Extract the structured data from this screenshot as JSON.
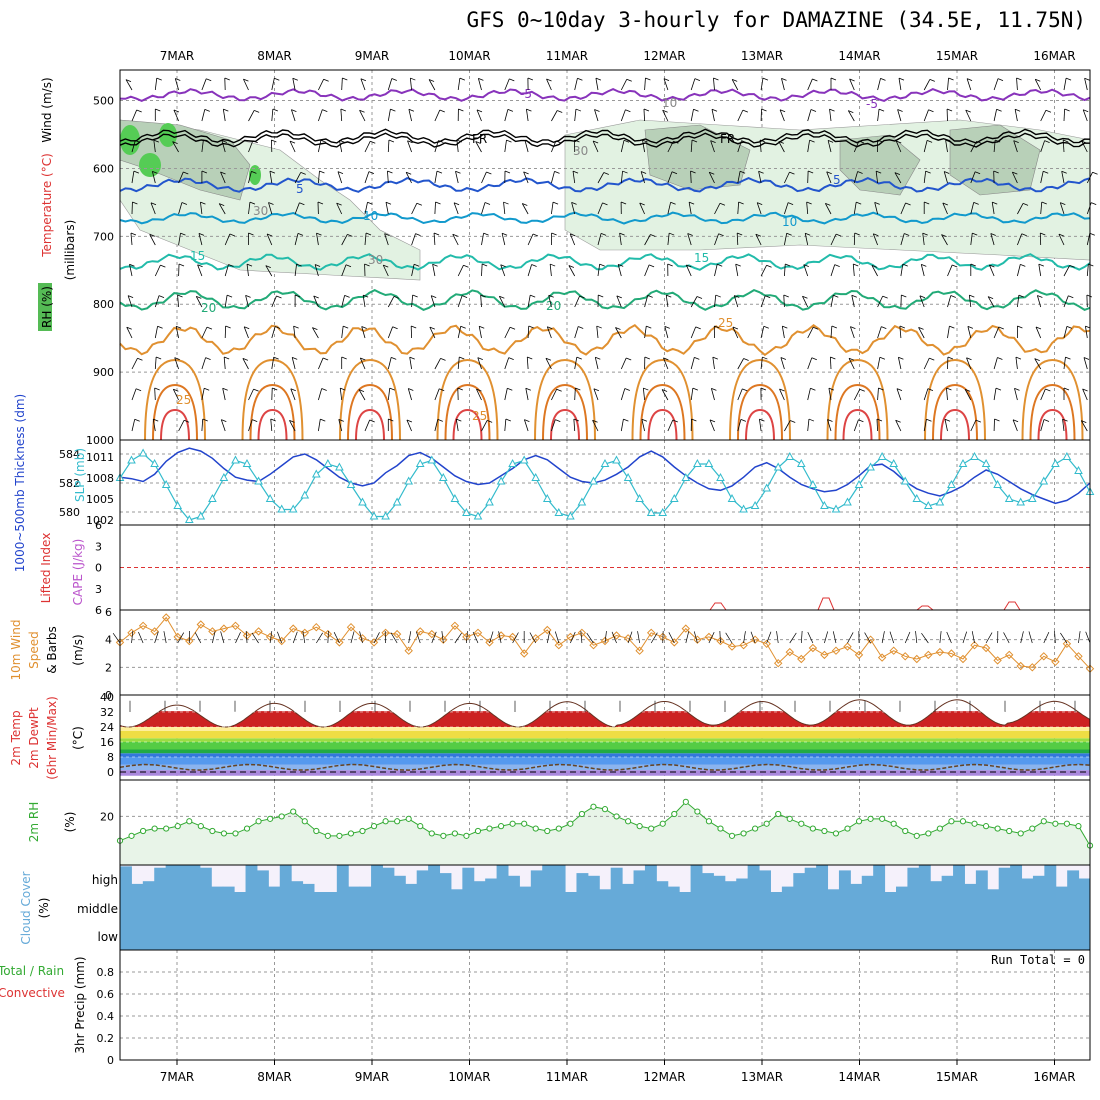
{
  "title": "GFS 0~10day 3-hourly for DAMAZINE (34.5E, 11.75N)",
  "dates": [
    "7MAR",
    "8MAR",
    "9MAR",
    "10MAR",
    "11MAR",
    "12MAR",
    "13MAR",
    "14MAR",
    "15MAR",
    "16MAR"
  ],
  "run_total_label": "Run Total = 0",
  "colors": {
    "rh": "#55cc55",
    "temp_label": "#dd3333",
    "wind_label": "#000000",
    "thick": "#2244cc",
    "slp": "#33bbcc",
    "lifted": "#dd3333",
    "cape": "#bb55cc",
    "wind10": "#e09030",
    "t2m": "#dd3333",
    "rh2": "#33aa33",
    "cloud": "#66aad8",
    "precip_total": "#33aa33",
    "precip_conv": "#dd3333"
  },
  "labels": {
    "upper": {
      "rh": "RH (%)",
      "temp": "Temperature (°C)",
      "wind": "Wind (m/s)",
      "pressure": "(millibars)",
      "fr": "FR",
      "contours": {
        "m5": "-5",
        "p5": "5",
        "p10": "10",
        "p15": "15",
        "p20": "20",
        "p25": "25",
        "rh30": "30",
        "rh10": "10"
      }
    },
    "thick": "1000~500mb Thickness (dm)",
    "slp": "SLP (mb)",
    "lifted": "Lifted Index",
    "cape": "CAPE (J/kg)",
    "wind10a": "10m Wind",
    "wind10b": "Speed",
    "wind10c": "& Barbs",
    "wind10unit": "(m/s)",
    "t2ma": "2m Temp",
    "t2mb": "2m DewPt",
    "t2mc": "(6hr Min/Max)",
    "t2munit": "(°C)",
    "rh2": "2m RH",
    "rh2unit": "(%)",
    "cloud": "Cloud Cover",
    "cloudunit": "(%)",
    "cloud_levels": {
      "high": "high",
      "middle": "middle",
      "low": "low"
    },
    "precipa": "Total / Rain",
    "precipb": "Convective",
    "precipc": "3hr Precip (mm)"
  },
  "chart_data": [
    {
      "type": "contour",
      "name": "upper-air",
      "y_axis": {
        "unit": "millibars",
        "ticks": [
          500,
          600,
          700,
          800,
          900,
          1000
        ],
        "range": [
          455,
          1000
        ],
        "inverted": true
      },
      "temperature_contours_C": [
        -5,
        5,
        10,
        15,
        20,
        25
      ],
      "freezing_level_mb": 560,
      "rh_contours_pct": [
        10,
        30,
        50,
        70,
        90
      ]
    },
    {
      "type": "line",
      "name": "thickness-slp",
      "thickness": {
        "ticks": [
          580,
          582,
          584
        ],
        "values": [
          582.4,
          582.3,
          582.1,
          582.6,
          583.5,
          584.1,
          584.4,
          584.2,
          583.7,
          583.0,
          582.4,
          582.2,
          582.1,
          582.6,
          583.2,
          583.8,
          584.0,
          583.6,
          583.0,
          582.4,
          582.0,
          581.8,
          582.0,
          582.7,
          583.2,
          583.9,
          584.1,
          583.7,
          583.1,
          582.5,
          582.1,
          581.9,
          582.0,
          582.5,
          583.0,
          583.6,
          583.9,
          583.6,
          583.0,
          582.4,
          582.1,
          582.0,
          582.2,
          582.6,
          583.1,
          583.8,
          584.2,
          583.8,
          583.1,
          582.5,
          582.0,
          581.6,
          581.5,
          581.8,
          582.4,
          583.1,
          583.4,
          583.0,
          582.4,
          581.9,
          581.6,
          581.4,
          581.5,
          581.9,
          582.5,
          583.2,
          583.3,
          582.8,
          582.1,
          581.6,
          581.3,
          581.1,
          581.4,
          581.8,
          582.4,
          582.9,
          582.6,
          582.1,
          581.6,
          581.2,
          580.9,
          580.6,
          580.8,
          581.3,
          582.0
        ]
      },
      "slp": {
        "ticks": [
          1002,
          1005,
          1008,
          1011
        ],
        "values": [
          1008.0,
          1010.5,
          1011.5,
          1010.0,
          1007.0,
          1004.0,
          1002.0,
          1002.5,
          1005.0,
          1008.0,
          1010.5,
          1010.0,
          1007.5,
          1005.0,
          1003.5,
          1003.5,
          1005.5,
          1008.5,
          1010.0,
          1009.5,
          1007.0,
          1004.5,
          1002.5,
          1002.5,
          1004.5,
          1007.5,
          1010.0,
          1010.5,
          1008.0,
          1005.0,
          1003.0,
          1002.5,
          1004.5,
          1007.5,
          1010.0,
          1010.5,
          1008.0,
          1005.0,
          1003.0,
          1002.5,
          1004.5,
          1007.5,
          1010.0,
          1010.5,
          1008.0,
          1005.0,
          1003.0,
          1003.0,
          1005.0,
          1008.0,
          1010.0,
          1010.0,
          1008.0,
          1005.0,
          1003.5,
          1004.0,
          1006.5,
          1009.5,
          1011.0,
          1010.0,
          1007.0,
          1004.0,
          1003.5,
          1004.5,
          1007.0,
          1009.5,
          1011.0,
          1010.0,
          1007.5,
          1005.0,
          1004.0,
          1004.5,
          1007.0,
          1010.0,
          1011.0,
          1010.0,
          1007.0,
          1005.0,
          1004.5,
          1005.0,
          1007.5,
          1010.0,
          1011.0,
          1009.0,
          1006.0
        ]
      }
    },
    {
      "type": "line",
      "name": "lifted-cape",
      "lifted_index": {
        "ticks": [
          -6,
          -3,
          0,
          3,
          6
        ],
        "reference": 0,
        "values": []
      },
      "cape": {
        "values": []
      }
    },
    {
      "type": "line",
      "name": "10m-wind",
      "y_axis": {
        "ticks": [
          0,
          2,
          4,
          6
        ],
        "range": [
          0,
          6
        ]
      },
      "values": [
        3.8,
        4.5,
        5.0,
        4.6,
        5.6,
        4.2,
        3.9,
        5.1,
        4.6,
        4.8,
        5.0,
        4.3,
        4.6,
        4.2,
        3.9,
        4.8,
        4.5,
        4.9,
        4.4,
        3.8,
        4.9,
        4.1,
        3.8,
        4.5,
        4.4,
        3.2,
        4.6,
        4.4,
        4.0,
        5.0,
        4.2,
        4.5,
        3.8,
        4.3,
        4.2,
        3.0,
        4.1,
        4.7,
        3.6,
        4.2,
        4.5,
        3.6,
        3.9,
        4.3,
        4.1,
        3.2,
        4.5,
        4.2,
        3.8,
        4.8,
        4.0,
        4.2,
        3.9,
        3.5,
        3.6,
        4.0,
        3.7,
        2.3,
        3.1,
        2.6,
        3.4,
        2.9,
        3.2,
        3.5,
        2.9,
        4.0,
        2.7,
        3.2,
        2.8,
        2.6,
        2.9,
        3.1,
        3.0,
        2.6,
        3.6,
        3.4,
        2.5,
        2.9,
        2.1,
        2.0,
        2.8,
        2.4,
        3.7,
        2.8,
        1.9
      ]
    },
    {
      "type": "area",
      "name": "2m-temp",
      "y_axis": {
        "ticks": [
          0,
          8,
          16,
          24,
          32,
          40
        ],
        "range": [
          0,
          40
        ]
      },
      "temperature_max": [
        37,
        38,
        38,
        38,
        39,
        39,
        39,
        40,
        40,
        39
      ],
      "temperature_min": [
        24,
        24,
        24,
        24,
        24,
        25,
        25,
        25,
        25,
        26
      ],
      "dewpoint_range": [
        1,
        4
      ]
    },
    {
      "type": "area",
      "name": "2m-rh",
      "y_axis": {
        "ticks": [
          20
        ],
        "range": [
          0,
          35
        ]
      },
      "values": [
        10,
        12,
        14,
        15,
        15,
        16,
        18,
        16,
        14,
        13,
        13,
        15,
        18,
        19,
        20,
        22,
        18,
        14,
        12,
        12,
        13,
        14,
        16,
        18,
        18,
        19,
        16,
        13,
        12,
        13,
        12,
        14,
        15,
        16,
        17,
        17,
        15,
        14,
        15,
        17,
        21,
        24,
        23,
        20,
        18,
        16,
        15,
        17,
        21,
        26,
        22,
        18,
        15,
        12,
        13,
        15,
        17,
        21,
        19,
        17,
        15,
        14,
        13,
        15,
        18,
        19,
        19,
        17,
        14,
        12,
        13,
        15,
        18,
        18,
        17,
        16,
        15,
        14,
        13,
        15,
        18,
        17,
        17,
        16,
        8
      ]
    },
    {
      "type": "bar",
      "name": "cloud-cover",
      "levels": [
        "high",
        "middle",
        "low"
      ],
      "high_pct": [
        95,
        30,
        40,
        90,
        100,
        100,
        100,
        90,
        20,
        20,
        0,
        100,
        80,
        20,
        100,
        40,
        30,
        0,
        0,
        100,
        20,
        20,
        100,
        90,
        60,
        30,
        80,
        100,
        70,
        10,
        90,
        40,
        50,
        100,
        60,
        20,
        80,
        100,
        100,
        0,
        70,
        60,
        10,
        90,
        30,
        80,
        100,
        40,
        20,
        0,
        100,
        70,
        60,
        40,
        50,
        100,
        80,
        0,
        20,
        70,
        90,
        100,
        10,
        80,
        30,
        60,
        100,
        0,
        20,
        90,
        100,
        40,
        60,
        100,
        30,
        80,
        10,
        90,
        100,
        50,
        60,
        100,
        20,
        80,
        50
      ],
      "middle_pct": 100,
      "low_pct": 100
    },
    {
      "type": "bar",
      "name": "3hr-precip",
      "y_axis": {
        "ticks": [
          0,
          0.2,
          0.4,
          0.6,
          0.8
        ],
        "range": [
          0,
          1
        ]
      },
      "values": []
    }
  ]
}
